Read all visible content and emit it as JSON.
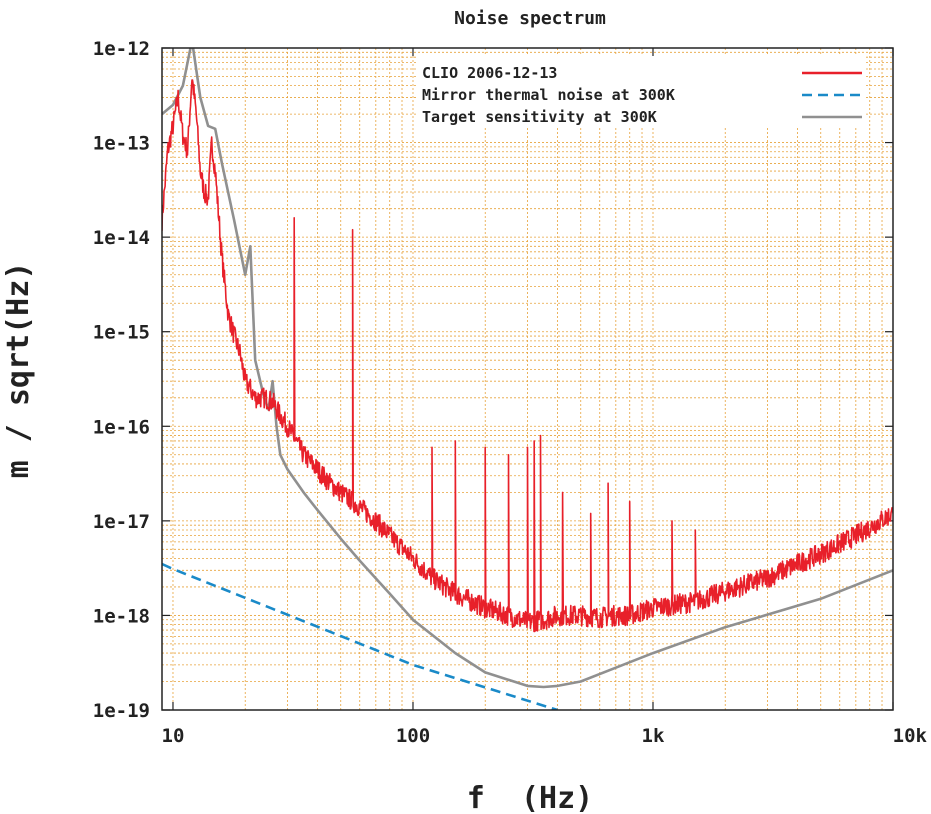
{
  "chart_data": {
    "type": "line",
    "title": "Noise spectrum",
    "xlabel": "f  (Hz)",
    "ylabel": "m / sqrt(Hz)",
    "x_scale": "log",
    "y_scale": "log",
    "xlim": [
      9,
      10000
    ],
    "ylim": [
      1e-19,
      1e-12
    ],
    "x_tick_values": [
      10,
      100,
      1000,
      10000
    ],
    "x_tick_labels": [
      "10",
      "100",
      "1k",
      "10k"
    ],
    "y_tick_values": [
      1e-12,
      1e-13,
      1e-14,
      1e-15,
      1e-16,
      1e-17,
      1e-18,
      1e-19
    ],
    "y_tick_labels": [
      "1e-12",
      "1e-13",
      "1e-14",
      "1e-15",
      "1e-16",
      "1e-17",
      "1e-18",
      "1e-19"
    ],
    "grid": true,
    "legend_position": "top-right",
    "series": [
      {
        "name": "CLIO 2006-12-13",
        "color": "#e8202a",
        "style": "solid",
        "x": [
          9,
          9.5,
          10,
          10.5,
          11,
          11.5,
          12,
          12.5,
          13,
          13.5,
          14,
          14.5,
          15,
          16,
          17,
          18,
          19,
          20,
          21,
          22,
          24,
          26,
          28,
          30,
          35,
          40,
          45,
          50,
          60,
          70,
          80,
          100,
          120,
          150,
          200,
          250,
          300,
          350,
          400,
          500,
          600,
          700,
          800,
          1000,
          1500,
          2000,
          3000,
          4000,
          5000,
          7000,
          10000
        ],
        "y": [
          1.5e-14,
          8e-14,
          1.5e-13,
          3e-13,
          1.2e-13,
          8e-14,
          5e-13,
          2e-13,
          5e-14,
          3e-14,
          2.5e-14,
          1e-13,
          5e-14,
          6e-15,
          1.5e-15,
          9e-16,
          6e-16,
          3e-16,
          2.5e-16,
          2e-16,
          2e-16,
          1.8e-16,
          1.3e-16,
          1e-16,
          5e-17,
          3.5e-17,
          2.5e-17,
          2e-17,
          1.4e-17,
          1e-17,
          7e-18,
          4e-18,
          2.5e-18,
          1.7e-18,
          1.2e-18,
          1e-18,
          8.5e-19,
          9e-19,
          1e-18,
          1e-18,
          9.5e-19,
          1e-18,
          1e-18,
          1.2e-18,
          1.4e-18,
          1.8e-18,
          2.5e-18,
          3.5e-18,
          4.5e-18,
          7e-18,
          1.2e-17
        ],
        "peaks": [
          [
            32,
            1.6e-14
          ],
          [
            56,
            1.2e-14
          ],
          [
            120,
            6e-17
          ],
          [
            150,
            7e-17
          ],
          [
            200,
            6e-17
          ],
          [
            250,
            5e-17
          ],
          [
            300,
            6e-17
          ],
          [
            320,
            7e-17
          ],
          [
            340,
            8e-17
          ],
          [
            420,
            2e-17
          ],
          [
            550,
            1.2e-17
          ],
          [
            650,
            2.5e-17
          ],
          [
            800,
            1.6e-17
          ],
          [
            1200,
            1e-17
          ],
          [
            1500,
            8e-18
          ]
        ]
      },
      {
        "name": "Mirror thermal noise at 300K",
        "color": "#1a8ac8",
        "style": "dashed",
        "x": [
          9,
          10,
          100,
          400
        ],
        "y": [
          3.5e-18,
          3.1e-18,
          3e-19,
          1e-19
        ]
      },
      {
        "name": "Target sensitivity at 300K",
        "color": "#909090",
        "style": "solid",
        "x": [
          9,
          10,
          11,
          12,
          13,
          14,
          15,
          16,
          18,
          20,
          21,
          22,
          24,
          25,
          26,
          27,
          28,
          30,
          35,
          40,
          50,
          60,
          80,
          100,
          150,
          200,
          300,
          350,
          400,
          500,
          700,
          1000,
          2000,
          5000,
          10000
        ],
        "y": [
          2e-13,
          2.5e-13,
          4e-13,
          1.2e-12,
          3e-13,
          1.5e-13,
          1.4e-13,
          6e-14,
          1.5e-14,
          4e-15,
          8e-15,
          5e-16,
          2e-16,
          1.5e-16,
          3e-16,
          1e-16,
          5e-17,
          3.5e-17,
          2e-17,
          1.3e-17,
          6.5e-18,
          3.8e-18,
          1.7e-18,
          9e-19,
          4e-19,
          2.5e-19,
          1.8e-19,
          1.75e-19,
          1.8e-19,
          2e-19,
          2.8e-19,
          4e-19,
          7.5e-19,
          1.5e-18,
          3e-18
        ]
      }
    ]
  }
}
